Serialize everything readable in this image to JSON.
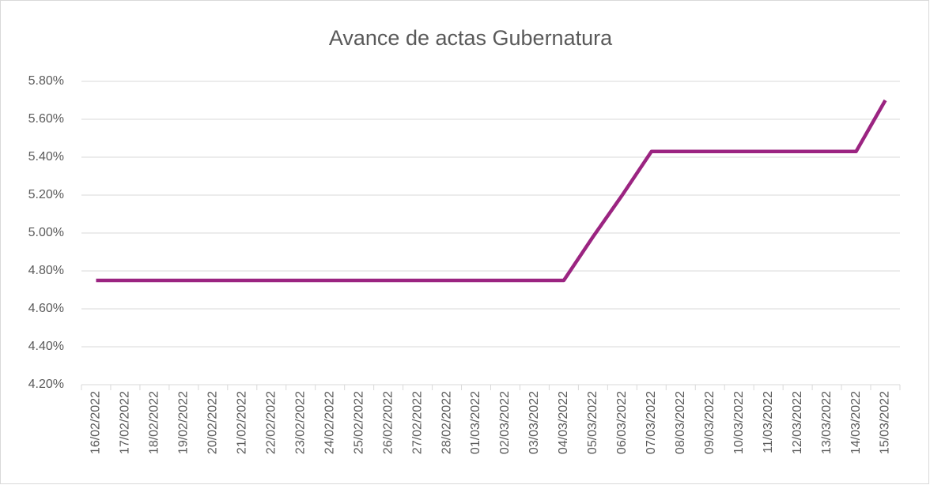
{
  "chart_data": {
    "type": "line",
    "title": "Avance de actas Gubernatura",
    "categories": [
      "16/02/2022",
      "17/02/2022",
      "18/02/2022",
      "19/02/2022",
      "20/02/2022",
      "21/02/2022",
      "22/02/2022",
      "23/02/2022",
      "24/02/2022",
      "25/02/2022",
      "26/02/2022",
      "27/02/2022",
      "28/02/2022",
      "01/03/2022",
      "02/03/2022",
      "03/03/2022",
      "04/03/2022",
      "05/03/2022",
      "06/03/2022",
      "07/03/2022",
      "08/03/2022",
      "09/03/2022",
      "10/03/2022",
      "11/03/2022",
      "12/03/2022",
      "13/03/2022",
      "14/03/2022",
      "15/03/2022"
    ],
    "values": [
      4.75,
      4.75,
      4.75,
      4.75,
      4.75,
      4.75,
      4.75,
      4.75,
      4.75,
      4.75,
      4.75,
      4.75,
      4.75,
      4.75,
      4.75,
      4.75,
      4.75,
      4.98,
      5.2,
      5.43,
      5.43,
      5.43,
      5.43,
      5.43,
      5.43,
      5.43,
      5.43,
      5.7
    ],
    "color": "#9b2481",
    "ylim": [
      4.2,
      5.8
    ],
    "yticks": [
      {
        "value": 4.2,
        "label": "4.20%"
      },
      {
        "value": 4.4,
        "label": "4.40%"
      },
      {
        "value": 4.6,
        "label": "4.60%"
      },
      {
        "value": 4.8,
        "label": "4.80%"
      },
      {
        "value": 5.0,
        "label": "5.00%"
      },
      {
        "value": 5.2,
        "label": "5.20%"
      },
      {
        "value": 5.4,
        "label": "5.40%"
      },
      {
        "value": 5.6,
        "label": "5.60%"
      },
      {
        "value": 5.8,
        "label": "5.80%"
      }
    ],
    "grid": true
  }
}
